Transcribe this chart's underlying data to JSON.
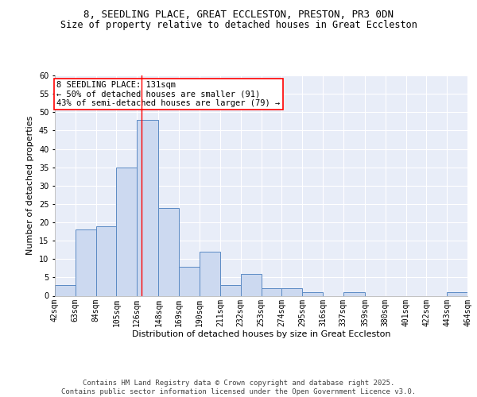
{
  "title1": "8, SEEDLING PLACE, GREAT ECCLESTON, PRESTON, PR3 0DN",
  "title2": "Size of property relative to detached houses in Great Eccleston",
  "xlabel": "Distribution of detached houses by size in Great Eccleston",
  "ylabel": "Number of detached properties",
  "bin_edges": [
    42,
    63,
    84,
    105,
    126,
    148,
    169,
    190,
    211,
    232,
    253,
    274,
    295,
    316,
    337,
    359,
    380,
    401,
    422,
    443,
    464
  ],
  "bin_labels": [
    "42sqm",
    "63sqm",
    "84sqm",
    "105sqm",
    "126sqm",
    "148sqm",
    "169sqm",
    "190sqm",
    "211sqm",
    "232sqm",
    "253sqm",
    "274sqm",
    "295sqm",
    "316sqm",
    "337sqm",
    "359sqm",
    "380sqm",
    "401sqm",
    "422sqm",
    "443sqm",
    "464sqm"
  ],
  "counts": [
    3,
    18,
    19,
    35,
    48,
    24,
    8,
    12,
    3,
    6,
    2,
    2,
    1,
    0,
    1,
    0,
    0,
    0,
    0,
    1
  ],
  "bar_color": "#ccd9f0",
  "bar_edge_color": "#5b8ac4",
  "vline_x": 131,
  "vline_color": "red",
  "annotation_text": "8 SEEDLING PLACE: 131sqm\n← 50% of detached houses are smaller (91)\n43% of semi-detached houses are larger (79) →",
  "annotation_box_color": "white",
  "annotation_box_edge": "red",
  "ylim": [
    0,
    60
  ],
  "yticks": [
    0,
    5,
    10,
    15,
    20,
    25,
    30,
    35,
    40,
    45,
    50,
    55,
    60
  ],
  "background_color": "#e8edf8",
  "footer_text": "Contains HM Land Registry data © Crown copyright and database right 2025.\nContains public sector information licensed under the Open Government Licence v3.0.",
  "title_fontsize": 9,
  "subtitle_fontsize": 8.5,
  "axis_label_fontsize": 8,
  "tick_fontsize": 7,
  "annotation_fontsize": 7.5,
  "footer_fontsize": 6.5
}
